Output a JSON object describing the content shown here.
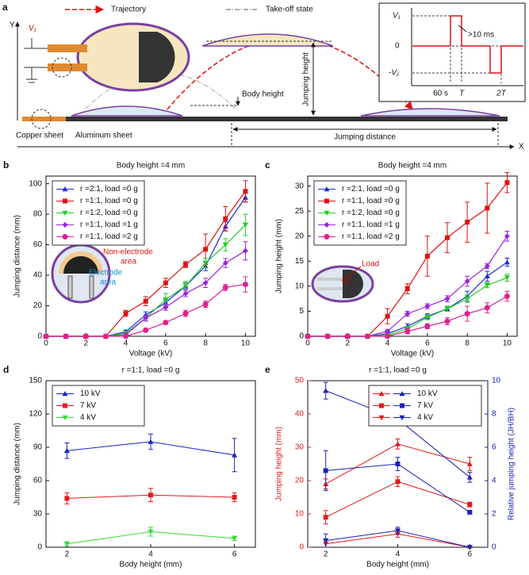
{
  "schematic": {
    "panel": "a",
    "legend": [
      "Trajectory",
      "Take-off state"
    ],
    "voltage": "V₁",
    "axes": [
      "Y",
      "X"
    ],
    "labels": {
      "body_height": "Body height",
      "jumping_height": "Jumping height",
      "jumping_distance": "Jumping distance",
      "copper": "Copper sheet",
      "aluminum": "Aluminum sheet"
    },
    "inset": {
      "v_high": "V₁",
      "zero": "0",
      "v_low": "-V₁",
      "width": ">10 ms",
      "t0": "60 s",
      "t1": "T",
      "t2": "2T"
    }
  },
  "chart_data": [
    {
      "panel": "b",
      "type": "line",
      "title": "Body height =4 mm",
      "xlabel": "Voltage (kV)",
      "ylabel": "Jumping distance (mm)",
      "x": [
        0,
        1,
        2,
        3,
        4,
        5,
        6,
        7,
        8,
        9,
        10
      ],
      "xlim": [
        0,
        10.5
      ],
      "xticks": [
        0,
        2,
        4,
        6,
        8,
        10
      ],
      "ylim": [
        0,
        105
      ],
      "yticks": [
        0,
        20,
        40,
        60,
        80,
        100
      ],
      "legend": "upper left",
      "annotations": [
        "Non-electrode",
        "area",
        "Electrode",
        "area"
      ],
      "series": [
        {
          "name": "r =2:1, load =0 g",
          "color": "#1f2fd0",
          "marker": "^",
          "values": [
            0,
            0,
            0,
            0,
            3,
            14,
            22,
            33,
            46,
            72,
            91
          ],
          "errors": [
            0,
            0,
            0,
            0,
            1,
            2,
            2,
            2,
            3,
            3,
            3
          ]
        },
        {
          "name": "r =1:1, load =0 g",
          "color": "#e01010",
          "marker": "s",
          "values": [
            0,
            0,
            0,
            0,
            15,
            23,
            35,
            47,
            57,
            77,
            95
          ],
          "errors": [
            0,
            0,
            0,
            0,
            2,
            3,
            3,
            2,
            10,
            8,
            7
          ]
        },
        {
          "name": "r =1:2, load =0 g",
          "color": "#22cc22",
          "marker": "v",
          "values": [
            0,
            0,
            0,
            0,
            2,
            12,
            24,
            33,
            48,
            60,
            73
          ],
          "errors": [
            0,
            0,
            0,
            0,
            1,
            2,
            4,
            3,
            3,
            4,
            7
          ]
        },
        {
          "name": "r =1:1, load =1 g",
          "color": "#9a22dd",
          "marker": "D",
          "values": [
            0,
            0,
            0,
            0,
            1,
            12,
            19,
            28,
            35,
            48,
            56
          ],
          "errors": [
            0,
            0,
            0,
            0,
            1,
            2,
            2,
            2,
            3,
            3,
            6
          ]
        },
        {
          "name": "r =1:1, load =2 g",
          "color": "#e0208f",
          "marker": "o",
          "values": [
            0,
            0,
            0,
            0,
            0,
            4,
            9,
            15,
            21,
            32,
            34
          ],
          "errors": [
            0,
            0,
            0,
            0,
            0,
            1,
            1,
            2,
            2,
            2,
            5
          ]
        }
      ]
    },
    {
      "panel": "c",
      "type": "line",
      "title": "Body height =4 mm",
      "xlabel": "Voltage (kV)",
      "ylabel": "Jumping height (mm)",
      "x": [
        0,
        1,
        2,
        3,
        4,
        5,
        6,
        7,
        8,
        9,
        10
      ],
      "xlim": [
        0,
        10.5
      ],
      "xticks": [
        0,
        2,
        4,
        6,
        8,
        10
      ],
      "ylim": [
        0,
        32
      ],
      "yticks": [
        0,
        5,
        10,
        15,
        20,
        25,
        30
      ],
      "legend": "upper left",
      "annotations": [
        "Load"
      ],
      "series": [
        {
          "name": "r =2:1, load =0 g",
          "color": "#1f2fd0",
          "marker": "^",
          "values": [
            0,
            0,
            0,
            0,
            0.5,
            2,
            4,
            5.5,
            8,
            12,
            14.8
          ],
          "errors": [
            0,
            0,
            0,
            0,
            0.3,
            0.5,
            0.5,
            0.5,
            1,
            1,
            0.8
          ]
        },
        {
          "name": "r =1:1, load =0 g",
          "color": "#e01010",
          "marker": "s",
          "values": [
            0,
            0,
            0,
            0,
            4,
            9.5,
            16,
            19.7,
            22.8,
            25.6,
            30.7
          ],
          "errors": [
            0,
            0,
            0,
            0,
            1.5,
            1,
            4,
            3,
            4,
            5,
            2
          ]
        },
        {
          "name": "r =1:2, load =0 g",
          "color": "#22cc22",
          "marker": "v",
          "values": [
            0,
            0,
            0,
            0,
            0.2,
            1.5,
            3.8,
            5.5,
            7.5,
            10.2,
            11.7
          ],
          "errors": [
            0,
            0,
            0,
            0,
            0.2,
            0.5,
            0.5,
            0.5,
            0.7,
            0.5,
            0.7
          ]
        },
        {
          "name": "r =1:1, load =1 g",
          "color": "#9a22dd",
          "marker": "D",
          "values": [
            0,
            0,
            0,
            0,
            1,
            4.5,
            6,
            7.5,
            11,
            14,
            20
          ],
          "errors": [
            0,
            0,
            0,
            0,
            0.3,
            0.5,
            0.5,
            0.6,
            1,
            0.5,
            1
          ]
        },
        {
          "name": "r =1:1, load =2 g",
          "color": "#e0208f",
          "marker": "o",
          "values": [
            0,
            0,
            0,
            0,
            0,
            1,
            2,
            3,
            4.5,
            5.7,
            8
          ],
          "errors": [
            0,
            0,
            0,
            0,
            0,
            0.5,
            0.5,
            0.7,
            1.5,
            1,
            1
          ]
        }
      ]
    },
    {
      "panel": "d",
      "type": "line",
      "title": "r =1:1, load =0 g",
      "xlabel": "Body height (mm)",
      "ylabel": "Jumping distance (mm)",
      "x": [
        2,
        4,
        6
      ],
      "xlim": [
        1.5,
        6.5
      ],
      "xticks": [
        2,
        4,
        6
      ],
      "ylim": [
        0,
        150
      ],
      "yticks": [
        0,
        30,
        60,
        90,
        120,
        150
      ],
      "legend": "upper left",
      "series": [
        {
          "name": "10 kV",
          "color": "#1a22c8",
          "marker": "^",
          "values": [
            87,
            95,
            83
          ],
          "errors": [
            7,
            7,
            15
          ]
        },
        {
          "name": "7 kV",
          "color": "#e21b1b",
          "marker": "s",
          "values": [
            44,
            47,
            45
          ],
          "errors": [
            5,
            6,
            4
          ]
        },
        {
          "name": "4 kV",
          "color": "#33dd33",
          "marker": "v",
          "values": [
            3,
            14,
            8
          ],
          "errors": [
            2,
            4,
            2
          ]
        }
      ]
    },
    {
      "panel": "e",
      "type": "line",
      "title": "r =1:1, load =0 g",
      "xlabel": "Body height (mm)",
      "ylabel": "Jumping height (mm)",
      "y2label": "Relative jumping height (JH/BH)",
      "x": [
        2,
        4,
        6
      ],
      "xlim": [
        1.5,
        6.5
      ],
      "xticks": [
        2,
        4,
        6
      ],
      "ylim": [
        0,
        50
      ],
      "yticks": [
        0,
        10,
        20,
        30,
        40,
        50
      ],
      "y2lim": [
        0,
        10
      ],
      "y2ticks": [
        0,
        2,
        4,
        6,
        8,
        10
      ],
      "legend": "upper right",
      "series": [
        {
          "name": "10 kV",
          "color": "#e01a1a",
          "marker": "^",
          "values": [
            19,
            31,
            25
          ],
          "errors": [
            1.5,
            1.5,
            2
          ]
        },
        {
          "name": "7 kV",
          "color": "#e01a1a",
          "marker": "s",
          "values": [
            9,
            19.7,
            12.8
          ],
          "errors": [
            2,
            1.5,
            0.7
          ]
        },
        {
          "name": "4 kV",
          "color": "#e01a1a",
          "marker": "v",
          "values": [
            1,
            4,
            0
          ],
          "errors": [
            1,
            1,
            0.3
          ]
        },
        {
          "color": "#1a22b8",
          "marker": "^",
          "axis": "y2",
          "values": [
            9.4,
            7.7,
            4.2
          ],
          "errors": [
            0.5,
            0.4,
            0.3
          ]
        },
        {
          "color": "#1a22b8",
          "marker": "s",
          "axis": "y2",
          "values": [
            4.6,
            5,
            2.1
          ],
          "errors": [
            1.2,
            0.4,
            0.1
          ]
        },
        {
          "color": "#1a22b8",
          "marker": "v",
          "axis": "y2",
          "values": [
            0.4,
            1,
            0
          ],
          "errors": [
            0.4,
            0.2,
            0
          ]
        }
      ]
    }
  ]
}
